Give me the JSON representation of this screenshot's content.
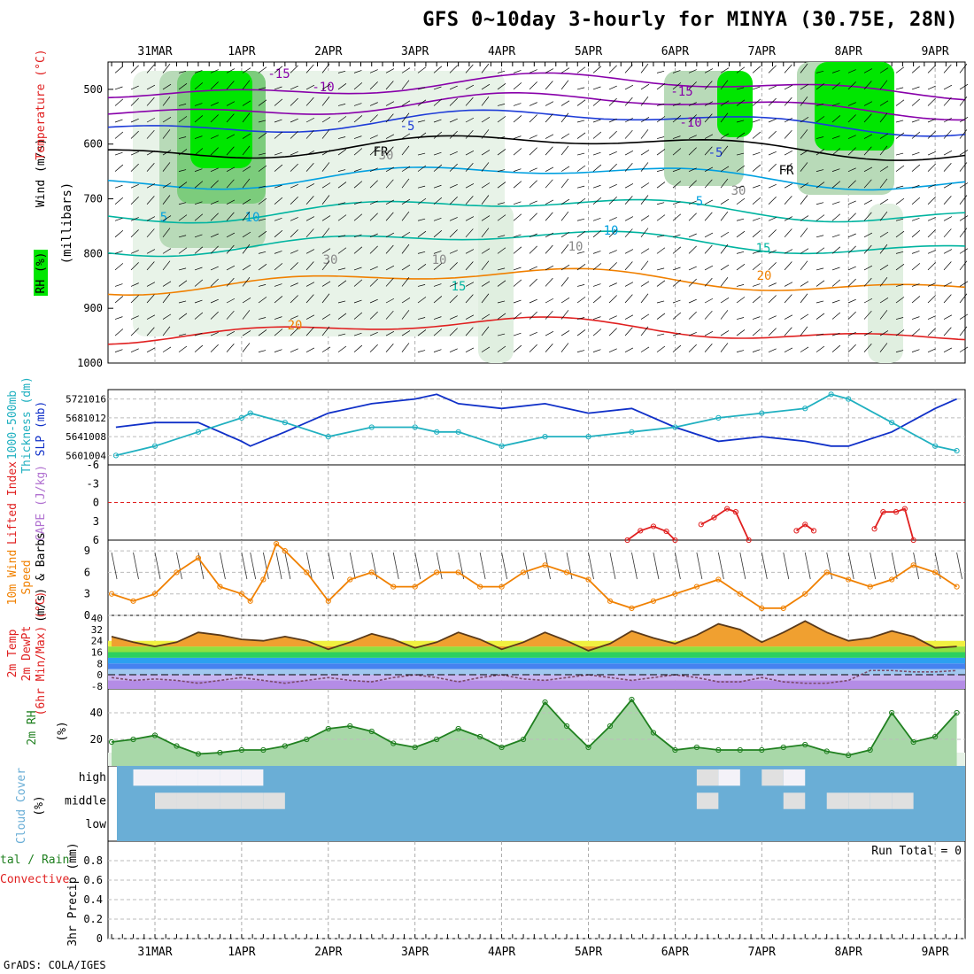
{
  "title": "GFS 0~10day 3-hourly for MINYA (30.75E, 28N)",
  "credit": "GrADS: COLA/IGES",
  "dates": [
    "31MAR",
    "1APR",
    "2APR",
    "3APR",
    "4APR",
    "5APR",
    "6APR",
    "7APR",
    "8APR",
    "9APR"
  ],
  "colors": {
    "green": "#00e600",
    "purple": "#8800aa",
    "blue": "#1e3cd8",
    "cyan": "#00a0e0",
    "teal": "#00b4a0",
    "orange": "#f08000",
    "red": "#e02020",
    "slp": "#1030c8",
    "thick": "#20b0c0",
    "wind10": "#f08000",
    "rh": "#208020",
    "cloud": "#6aaed6"
  },
  "panels": {
    "upper_air": {
      "ylabel_rh": "RH (%)",
      "ylabel_temp": "Temperature (°C)",
      "ylabel_wind": "Wind (m/s)",
      "ylabel_level": "(millibars)",
      "levels": [
        "500",
        "600",
        "700",
        "800",
        "900",
        "1000"
      ],
      "contour_labels": [
        "-15",
        "-10",
        "-5",
        "FR",
        "5",
        "10",
        "15",
        "20",
        "-15",
        "-10",
        "-5",
        "FR",
        "5",
        "10",
        "15",
        "20",
        "10",
        "30",
        "30",
        "10",
        "30"
      ]
    },
    "slp_thickness": {
      "ylabel_thick": "1000-500mb Thickness (dm)",
      "ylabel_slp": "SLP (mb)",
      "left_ticks": [
        "572",
        "568",
        "564",
        "560"
      ],
      "right_ticks": [
        "1016",
        "1012",
        "1008",
        "1004"
      ]
    },
    "stability": {
      "ylabel_li": "Lifted Index",
      "ylabel_cape": "CAPE (J/kg)",
      "ticks": [
        "-6",
        "-3",
        "0",
        "3",
        "6"
      ]
    },
    "wind10m": {
      "ylabel_a": "10m Wind",
      "ylabel_b": "Speed",
      "ylabel_c": "(m/s) & Barbs",
      "ticks": [
        "9",
        "6",
        "3",
        "0"
      ]
    },
    "temp2m": {
      "ylabel_a": "2m Temp",
      "ylabel_b": "2m DewPt",
      "ylabel_c": "(6hr Min/Max) (°C)",
      "ticks": [
        "40",
        "32",
        "24",
        "16",
        "8",
        "0",
        "-8"
      ]
    },
    "rh2m": {
      "ylabel_a": "2m RH",
      "ylabel_b": "(%)",
      "ticks": [
        "40",
        "20"
      ]
    },
    "cloud": {
      "ylabel_a": "Cloud Cover",
      "ylabel_b": "(%)",
      "layers": [
        "high",
        "middle",
        "low"
      ]
    },
    "precip": {
      "ylabel_a": "tal / Rain",
      "ylabel_b": "Convective",
      "ylabel_c": "3hr Precip (mm)",
      "ticks": [
        "0.8",
        "0.6",
        "0.4",
        "0.2",
        "0"
      ],
      "run_total": "Run Total = 0"
    }
  },
  "chart_data": [
    {
      "type": "line",
      "name": "slp_thickness",
      "x_unit": "days from 31MAR 00Z",
      "x": [
        -0.45,
        0,
        0.5,
        1,
        1.1,
        1.5,
        2,
        2.5,
        3,
        3.25,
        3.5,
        4,
        4.5,
        5,
        5.5,
        6,
        6.5,
        7,
        7.5,
        7.8,
        8,
        8.5,
        9,
        9.25
      ],
      "series": [
        {
          "name": "SLP (mb)",
          "y_unit": "mb",
          "values": [
            1010,
            1011,
            1011,
            1007,
            1006,
            1009,
            1013,
            1015,
            1016,
            1017,
            1015,
            1014,
            1015,
            1013,
            1014,
            1010,
            1007,
            1008,
            1007,
            1006,
            1006,
            1009,
            1014,
            1016
          ]
        },
        {
          "name": "1000-500mb Thickness (dm)",
          "y_unit": "dm",
          "values": [
            560,
            562,
            565,
            568,
            569,
            567,
            564,
            566,
            566,
            565,
            565,
            562,
            564,
            564,
            565,
            566,
            568,
            569,
            570,
            573,
            572,
            567,
            562,
            561
          ]
        }
      ],
      "ylim_left": [
        558,
        574
      ],
      "ylim_right": [
        1002,
        1018
      ]
    },
    {
      "type": "line",
      "name": "lifted_index",
      "x": [
        5.45,
        5.6,
        5.75,
        5.9,
        6.0,
        6.3,
        6.45,
        6.6,
        6.7,
        6.85,
        7.4,
        7.5,
        7.6,
        8.3,
        8.4,
        8.55,
        8.65,
        8.75
      ],
      "series": [
        {
          "name": "Lifted Index",
          "values": [
            6,
            4.5,
            3.8,
            4.6,
            6,
            3.5,
            2.4,
            1,
            1.5,
            6,
            4.5,
            3.5,
            4.5,
            4.2,
            1.5,
            1.5,
            1.0,
            6
          ]
        }
      ],
      "ylim": [
        6,
        -6
      ]
    },
    {
      "type": "line",
      "name": "wind10m",
      "x": [
        -0.5,
        -0.25,
        0,
        0.25,
        0.5,
        0.75,
        1,
        1.1,
        1.25,
        1.4,
        1.5,
        1.75,
        2,
        2.25,
        2.5,
        2.75,
        3,
        3.25,
        3.5,
        3.75,
        4,
        4.25,
        4.5,
        4.75,
        5,
        5.25,
        5.5,
        5.75,
        6,
        6.25,
        6.5,
        6.75,
        7,
        7.25,
        7.5,
        7.75,
        8,
        8.25,
        8.5,
        8.75,
        9,
        9.25
      ],
      "series": [
        {
          "name": "10m Wind Speed (m/s)",
          "values": [
            3,
            2,
            3,
            6,
            8,
            4,
            3,
            2,
            5,
            10,
            9,
            6,
            2,
            5,
            6,
            4,
            4,
            6,
            6,
            4,
            4,
            6,
            7,
            6,
            5,
            2,
            1,
            2,
            3,
            4,
            5,
            3,
            1,
            1,
            3,
            6,
            5,
            4,
            5,
            7,
            6,
            4
          ]
        }
      ],
      "ylim": [
        0,
        10.5
      ]
    },
    {
      "type": "line",
      "name": "temp2m",
      "x": [
        -0.5,
        -0.25,
        0,
        0.25,
        0.5,
        0.75,
        1,
        1.25,
        1.5,
        1.75,
        2,
        2.25,
        2.5,
        2.75,
        3,
        3.25,
        3.5,
        3.75,
        4,
        4.25,
        4.5,
        4.75,
        5,
        5.25,
        5.5,
        5.75,
        6,
        6.25,
        6.5,
        6.75,
        7,
        7.25,
        7.5,
        7.75,
        8,
        8.25,
        8.5,
        8.75,
        9,
        9.25
      ],
      "series": [
        {
          "name": "2m Temp (°C)",
          "values": [
            27,
            23,
            20,
            23,
            30,
            28,
            25,
            24,
            27,
            24,
            18,
            23,
            29,
            25,
            19,
            23,
            30,
            25,
            18,
            23,
            30,
            24,
            17,
            22,
            31,
            26,
            22,
            28,
            36,
            32,
            23,
            30,
            38,
            30,
            24,
            26,
            31,
            27,
            19,
            20
          ]
        },
        {
          "name": "2m DewPt (°C)",
          "values": [
            -2,
            -4,
            -3,
            -4,
            -6,
            -4,
            -2,
            -4,
            -6,
            -4,
            -2,
            -4,
            -5,
            -2,
            0,
            -2,
            -5,
            -2,
            0,
            -3,
            -4,
            -2,
            0,
            -2,
            -4,
            -2,
            0,
            -2,
            -5,
            -5,
            -2,
            -5,
            -6,
            -6,
            -4,
            3,
            3,
            2,
            2,
            3
          ]
        }
      ],
      "ylim": [
        -10,
        42
      ]
    },
    {
      "type": "area",
      "name": "rh2m",
      "x": [
        -0.5,
        -0.25,
        0,
        0.25,
        0.5,
        0.75,
        1,
        1.25,
        1.5,
        1.75,
        2,
        2.25,
        2.5,
        2.75,
        3,
        3.25,
        3.5,
        3.75,
        4,
        4.25,
        4.5,
        4.75,
        5,
        5.25,
        5.5,
        5.75,
        6,
        6.25,
        6.5,
        6.75,
        7,
        7.25,
        7.5,
        7.75,
        8,
        8.25,
        8.5,
        8.75,
        9,
        9.25
      ],
      "series": [
        {
          "name": "2m RH (%)",
          "values": [
            18,
            20,
            23,
            15,
            9,
            10,
            12,
            12,
            15,
            20,
            28,
            30,
            26,
            17,
            14,
            20,
            28,
            22,
            14,
            20,
            48,
            30,
            14,
            30,
            50,
            25,
            12,
            14,
            12,
            12,
            12,
            14,
            16,
            11,
            8,
            12,
            40,
            18,
            22,
            40
          ]
        }
      ],
      "ylim": [
        0,
        58
      ]
    },
    {
      "type": "heatmap",
      "name": "cloud_cover",
      "rows": [
        "high",
        "middle",
        "low"
      ],
      "x": [
        -0.5,
        -0.25,
        0,
        0.25,
        0.5,
        0.75,
        1,
        1.25,
        1.5,
        1.75,
        2,
        2.25,
        2.5,
        2.75,
        3,
        3.25,
        3.5,
        3.75,
        4,
        4.25,
        4.5,
        4.75,
        5,
        5.25,
        5.5,
        5.75,
        6,
        6.25,
        6.5,
        6.75,
        7,
        7.25,
        7.5,
        7.75,
        8,
        8.25,
        8.5,
        8.75,
        9,
        9.25
      ],
      "values": [
        [
          100,
          5,
          5,
          5,
          5,
          5,
          5,
          100,
          100,
          100,
          100,
          100,
          100,
          100,
          100,
          100,
          100,
          100,
          100,
          100,
          100,
          100,
          100,
          100,
          100,
          100,
          100,
          60,
          20,
          100,
          60,
          20,
          100,
          100,
          100,
          100,
          100,
          100,
          100,
          100
        ],
        [
          100,
          100,
          80,
          80,
          80,
          80,
          80,
          60,
          100,
          100,
          100,
          100,
          100,
          100,
          100,
          100,
          100,
          100,
          100,
          100,
          100,
          100,
          100,
          100,
          100,
          100,
          100,
          80,
          100,
          100,
          100,
          80,
          90,
          80,
          80,
          80,
          80,
          100,
          100,
          100
        ],
        [
          100,
          100,
          100,
          100,
          100,
          100,
          95,
          100,
          100,
          100,
          100,
          100,
          100,
          100,
          100,
          100,
          100,
          100,
          100,
          100,
          100,
          100,
          100,
          100,
          100,
          100,
          100,
          100,
          100,
          100,
          100,
          100,
          100,
          100,
          100,
          100,
          100,
          100,
          100,
          100
        ]
      ]
    },
    {
      "type": "bar",
      "name": "precip",
      "categories": [],
      "values": [],
      "ylim": [
        0,
        1
      ]
    }
  ]
}
